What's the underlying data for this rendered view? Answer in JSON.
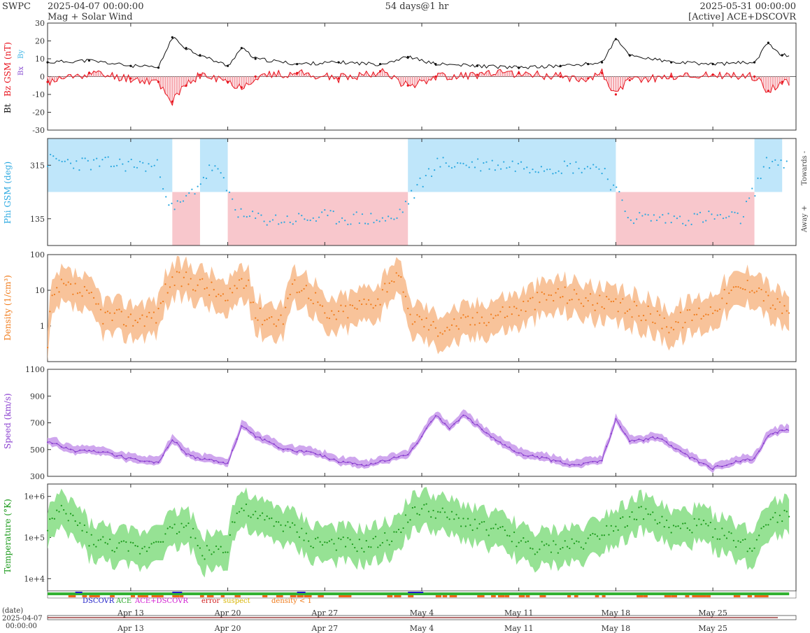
{
  "header": {
    "source": "SWPC",
    "start": "2025-04-07 00:00:00",
    "product": "Mag + Solar Wind",
    "span": "54 days@1 hr",
    "end": "2025-05-31 00:00:00",
    "satellite": "[Active] ACE+DSCOVR"
  },
  "colors": {
    "bt": "#111111",
    "bz": "#e8141e",
    "bz_fill": "#f6a6ad",
    "by": "#3cb4e6",
    "bx": "#8a4fd2",
    "phi": "#2aa8e0",
    "phi_toward_fill": "#bfe6fa",
    "phi_away_fill": "#f8c7cc",
    "density": "#f07c1c",
    "density_fill": "#f8c39a",
    "speed": "#8a3fcf",
    "speed_fill": "#cfa6ee",
    "temp": "#1a9a1a",
    "temp_fill": "#96e294"
  },
  "legend": {
    "dscovr": "DSCOVR",
    "ace": "ACE",
    "ace_dscovr": "ACE+DSCOVR",
    "error": "error",
    "suspect": "suspect",
    "density_lt1": "density < 1"
  },
  "date_axis": {
    "label": "(date)",
    "start_date": "2025-04-07",
    "start_time": "00:00:00"
  },
  "chart_data": [
    {
      "type": "line",
      "title": "",
      "ylabel_parts": [
        "Bt",
        "Bz GSM (nT)",
        "Bx",
        "By"
      ],
      "ylim": [
        -30,
        30
      ],
      "yticks": [
        30,
        20,
        10,
        0,
        -10,
        -20,
        -30
      ],
      "xlim": [
        "2025-04-07",
        "2025-05-31"
      ],
      "xticks": [
        "Apr 13",
        "Apr 20",
        "Apr 27",
        "May 4",
        "May 11",
        "May 18",
        "May 25"
      ],
      "xtick_dates": [
        "2025-04-13",
        "2025-04-20",
        "2025-04-27",
        "2025-05-04",
        "2025-05-11",
        "2025-05-18",
        "2025-05-25"
      ],
      "series": [
        {
          "name": "Bt",
          "x": [
            "2025-04-07",
            "2025-04-10",
            "2025-04-13",
            "2025-04-15",
            "2025-04-16",
            "2025-04-17",
            "2025-04-18",
            "2025-04-20",
            "2025-04-21",
            "2025-04-22",
            "2025-04-25",
            "2025-04-28",
            "2025-05-01",
            "2025-05-03",
            "2025-05-05",
            "2025-05-08",
            "2025-05-11",
            "2025-05-14",
            "2025-05-16",
            "2025-05-17",
            "2025-05-18",
            "2025-05-19",
            "2025-05-22",
            "2025-05-25",
            "2025-05-28",
            "2025-05-29",
            "2025-05-30"
          ],
          "values": [
            8,
            9,
            6,
            5,
            22,
            16,
            12,
            6,
            16,
            10,
            7,
            8,
            7,
            11,
            7,
            6,
            5,
            6,
            7,
            8,
            21,
            12,
            8,
            7,
            8,
            19,
            12
          ]
        },
        {
          "name": "Bz",
          "x": [
            "2025-04-07",
            "2025-04-10",
            "2025-04-13",
            "2025-04-15",
            "2025-04-16",
            "2025-04-17",
            "2025-04-18",
            "2025-04-20",
            "2025-04-21",
            "2025-04-22",
            "2025-04-25",
            "2025-04-28",
            "2025-05-01",
            "2025-05-03",
            "2025-05-05",
            "2025-05-08",
            "2025-05-11",
            "2025-05-14",
            "2025-05-16",
            "2025-05-17",
            "2025-05-18",
            "2025-05-19",
            "2025-05-22",
            "2025-05-25",
            "2025-05-28",
            "2025-05-29",
            "2025-05-30"
          ],
          "values": [
            -3,
            2,
            -1,
            -3,
            -14,
            -5,
            1,
            -3,
            -6,
            0,
            2,
            -1,
            3,
            -5,
            0,
            1,
            2,
            0,
            -1,
            2,
            -10,
            -2,
            0,
            1,
            0,
            -8,
            -3
          ]
        }
      ]
    },
    {
      "type": "scatter",
      "title": "",
      "ylabel": "Phi GSM (deg)",
      "yticks": [
        315,
        135
      ],
      "ylim": [
        45,
        405
      ],
      "right_labels": [
        "Towards -",
        "Away +"
      ],
      "toward_intervals": [
        [
          "2025-04-07",
          "2025-04-16"
        ],
        [
          "2025-04-18",
          "2025-04-20"
        ],
        [
          "2025-05-03",
          "2025-05-18"
        ],
        [
          "2025-05-28",
          "2025-05-30"
        ]
      ],
      "away_intervals": [
        [
          "2025-04-16",
          "2025-04-18"
        ],
        [
          "2025-04-20",
          "2025-05-03"
        ],
        [
          "2025-05-18",
          "2025-05-28"
        ]
      ],
      "series": [
        {
          "name": "Phi",
          "x": [
            "2025-04-07",
            "2025-04-10",
            "2025-04-13",
            "2025-04-15",
            "2025-04-16",
            "2025-04-17",
            "2025-04-19",
            "2025-04-21",
            "2025-04-24",
            "2025-04-27",
            "2025-04-30",
            "2025-05-02",
            "2025-05-05",
            "2025-05-08",
            "2025-05-11",
            "2025-05-14",
            "2025-05-17",
            "2025-05-19",
            "2025-05-22",
            "2025-05-25",
            "2025-05-27",
            "2025-05-29",
            "2025-05-30"
          ],
          "values": [
            330,
            320,
            318,
            310,
            160,
            200,
            315,
            140,
            130,
            140,
            135,
            130,
            320,
            318,
            315,
            310,
            310,
            140,
            135,
            140,
            135,
            330,
            325
          ]
        }
      ]
    },
    {
      "type": "area",
      "title": "",
      "ylabel": "Density (1/cm³)",
      "yscale": "log",
      "ylim": [
        0.1,
        100
      ],
      "yticks": [
        100,
        10,
        1
      ],
      "series": [
        {
          "name": "Density",
          "x": [
            "2025-04-07",
            "2025-04-08",
            "2025-04-09",
            "2025-04-11",
            "2025-04-13",
            "2025-04-15",
            "2025-04-16",
            "2025-04-17",
            "2025-04-18",
            "2025-04-20",
            "2025-04-21",
            "2025-04-22",
            "2025-04-24",
            "2025-04-25",
            "2025-04-27",
            "2025-04-29",
            "2025-05-01",
            "2025-05-02",
            "2025-05-03",
            "2025-05-05",
            "2025-05-08",
            "2025-05-11",
            "2025-05-14",
            "2025-05-17",
            "2025-05-19",
            "2025-05-22",
            "2025-05-25",
            "2025-05-28",
            "2025-05-29",
            "2025-05-30"
          ],
          "values": [
            0.2,
            12,
            10,
            2,
            1.5,
            2,
            18,
            20,
            15,
            4,
            20,
            2,
            1.5,
            15,
            1.5,
            3,
            6,
            25,
            2,
            0.8,
            1.5,
            3,
            8,
            4,
            3,
            1,
            3,
            15,
            5,
            3
          ]
        }
      ]
    },
    {
      "type": "line",
      "title": "",
      "ylabel": "Speed (km/s)",
      "ylim": [
        300,
        1100
      ],
      "yticks": [
        1100,
        900,
        700,
        500,
        300
      ],
      "series": [
        {
          "name": "Speed",
          "x": [
            "2025-04-07",
            "2025-04-09",
            "2025-04-11",
            "2025-04-13",
            "2025-04-15",
            "2025-04-16",
            "2025-04-17",
            "2025-04-18",
            "2025-04-20",
            "2025-04-21",
            "2025-04-22",
            "2025-04-24",
            "2025-04-26",
            "2025-04-28",
            "2025-04-30",
            "2025-05-02",
            "2025-05-03",
            "2025-05-04",
            "2025-05-05",
            "2025-05-06",
            "2025-05-07",
            "2025-05-09",
            "2025-05-11",
            "2025-05-13",
            "2025-05-15",
            "2025-05-17",
            "2025-05-18",
            "2025-05-19",
            "2025-05-21",
            "2025-05-23",
            "2025-05-25",
            "2025-05-27",
            "2025-05-28",
            "2025-05-29",
            "2025-05-30"
          ],
          "values": [
            560,
            490,
            480,
            430,
            400,
            580,
            470,
            430,
            400,
            680,
            600,
            500,
            480,
            410,
            380,
            440,
            460,
            600,
            760,
            650,
            760,
            600,
            470,
            430,
            380,
            420,
            720,
            560,
            590,
            460,
            360,
            420,
            430,
            600,
            650
          ]
        }
      ]
    },
    {
      "type": "area",
      "title": "",
      "ylabel": "Temperature (°K)",
      "yscale": "log",
      "ylim": [
        5000,
        2000000
      ],
      "yticks": [
        "1e+6",
        "1e+5",
        "1e+4"
      ],
      "series": [
        {
          "name": "Temperature",
          "x": [
            "2025-04-07",
            "2025-04-08",
            "2025-04-10",
            "2025-04-12",
            "2025-04-14",
            "2025-04-16",
            "2025-04-17",
            "2025-04-18",
            "2025-04-20",
            "2025-04-21",
            "2025-04-22",
            "2025-04-24",
            "2025-04-26",
            "2025-04-28",
            "2025-04-30",
            "2025-05-02",
            "2025-05-04",
            "2025-05-06",
            "2025-05-08",
            "2025-05-10",
            "2025-05-12",
            "2025-05-14",
            "2025-05-16",
            "2025-05-18",
            "2025-05-20",
            "2025-05-22",
            "2025-05-24",
            "2025-05-26",
            "2025-05-28",
            "2025-05-29",
            "2025-05-30"
          ],
          "values": [
            200000,
            400000,
            90000,
            60000,
            50000,
            150000,
            200000,
            40000,
            60000,
            500000,
            300000,
            200000,
            80000,
            70000,
            60000,
            100000,
            500000,
            300000,
            200000,
            120000,
            50000,
            60000,
            80000,
            200000,
            400000,
            150000,
            200000,
            100000,
            50000,
            300000,
            350000
          ]
        }
      ]
    }
  ]
}
